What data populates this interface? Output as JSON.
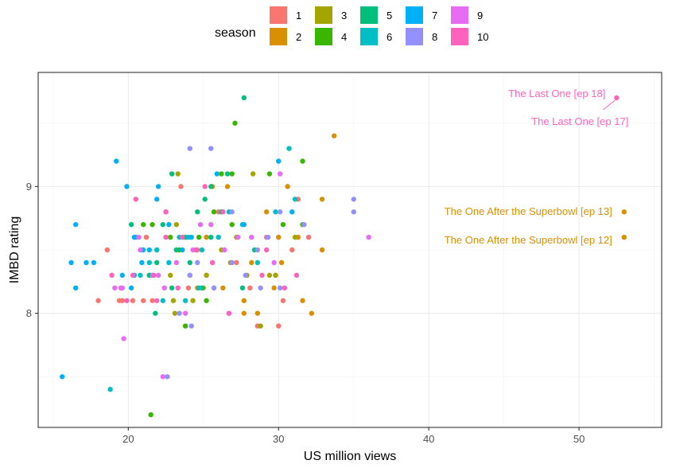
{
  "chart_data": {
    "type": "scatter",
    "title": "",
    "xlabel": "US million views",
    "ylabel": "IMBD rating",
    "xlim": [
      14,
      55.5
    ],
    "ylim": [
      7.1,
      9.9
    ],
    "xticks": [
      20,
      30,
      40,
      50
    ],
    "yticks": [
      8,
      9
    ],
    "grid": true,
    "legend": {
      "title": "season",
      "placement": "top",
      "entries": [
        {
          "label": "1",
          "color": "#F8766D"
        },
        {
          "label": "2",
          "color": "#D89000"
        },
        {
          "label": "3",
          "color": "#A3A500"
        },
        {
          "label": "4",
          "color": "#39B600"
        },
        {
          "label": "5",
          "color": "#00BF7D"
        },
        {
          "label": "6",
          "color": "#00BFC4"
        },
        {
          "label": "7",
          "color": "#00B0F6"
        },
        {
          "label": "8",
          "color": "#9590FF"
        },
        {
          "label": "9",
          "color": "#E76BF3"
        },
        {
          "label": "10",
          "color": "#FF62BC"
        }
      ]
    },
    "series": [
      {
        "name": "1",
        "color": "#F8766D",
        "points": [
          [
            18.6,
            8.5
          ],
          [
            18.0,
            8.1
          ],
          [
            19.4,
            8.1
          ],
          [
            19.6,
            8.1
          ],
          [
            20.3,
            8.1
          ],
          [
            21.0,
            8.1
          ],
          [
            21.6,
            8.1
          ],
          [
            22.5,
            8.8
          ],
          [
            23.5,
            9.0
          ],
          [
            24.0,
            8.2
          ],
          [
            24.6,
            8.5
          ],
          [
            25.2,
            8.3
          ],
          [
            26.0,
            8.8
          ],
          [
            26.7,
            8.0
          ],
          [
            27.2,
            8.4
          ],
          [
            28.1,
            8.2
          ],
          [
            28.6,
            7.9
          ],
          [
            29.2,
            8.6
          ],
          [
            29.8,
            8.3
          ],
          [
            30.0,
            7.9
          ],
          [
            30.3,
            8.1
          ],
          [
            30.9,
            8.5
          ],
          [
            31.3,
            8.9
          ],
          [
            32.0,
            8.6
          ],
          [
            21.2,
            8.6
          ]
        ]
      },
      {
        "name": "2",
        "color": "#D89000",
        "points": [
          [
            33.7,
            9.4
          ],
          [
            31.3,
            8.6
          ],
          [
            32.9,
            8.5
          ],
          [
            32.9,
            8.9
          ],
          [
            32.2,
            8.0
          ],
          [
            31.6,
            8.1
          ],
          [
            30.2,
            8.4
          ],
          [
            29.7,
            8.2
          ],
          [
            28.6,
            8.0
          ],
          [
            28.2,
            8.4
          ],
          [
            27.7,
            8.1
          ],
          [
            26.3,
            8.2
          ],
          [
            25.6,
            9.0
          ],
          [
            25.2,
            8.6
          ],
          [
            26.6,
            9.0
          ],
          [
            27.7,
            8.0
          ],
          [
            29.2,
            8.8
          ],
          [
            30.0,
            8.6
          ],
          [
            30.6,
            9.0
          ],
          [
            24.6,
            8.2
          ],
          [
            53.0,
            8.8
          ],
          [
            53.0,
            8.6
          ]
        ]
      },
      {
        "name": "3",
        "color": "#A3A500",
        "points": [
          [
            23.3,
            9.1
          ],
          [
            23.2,
            8.7
          ],
          [
            24.5,
            8.5
          ],
          [
            25.0,
            8.2
          ],
          [
            25.7,
            8.2
          ],
          [
            26.2,
            8.5
          ],
          [
            27.2,
            8.6
          ],
          [
            28.3,
            9.1
          ],
          [
            29.4,
            8.3
          ],
          [
            23.0,
            8.1
          ],
          [
            24.3,
            8.1
          ],
          [
            25.2,
            8.3
          ],
          [
            26.8,
            8.4
          ],
          [
            27.9,
            8.3
          ],
          [
            28.8,
            7.9
          ],
          [
            30.9,
            8.8
          ],
          [
            31.1,
            8.6
          ],
          [
            22.8,
            8.3
          ],
          [
            23.1,
            8.0
          ],
          [
            29.8,
            8.3
          ]
        ]
      },
      {
        "name": "4",
        "color": "#39B600",
        "points": [
          [
            27.1,
            9.5
          ],
          [
            26.9,
            9.1
          ],
          [
            26.2,
            9.1
          ],
          [
            25.7,
            8.8
          ],
          [
            24.7,
            8.6
          ],
          [
            24.1,
            8.3
          ],
          [
            23.8,
            7.9
          ],
          [
            21.9,
            8.5
          ],
          [
            21.6,
            8.7
          ],
          [
            21.4,
            8.3
          ],
          [
            22.8,
            8.6
          ],
          [
            23.4,
            8.5
          ],
          [
            21.0,
            8.7
          ],
          [
            21.5,
            7.2
          ],
          [
            25.2,
            8.1
          ],
          [
            26.9,
            8.7
          ],
          [
            29.4,
            9.1
          ],
          [
            30.3,
            8.7
          ],
          [
            31.6,
            9.2
          ],
          [
            31.6,
            8.7
          ]
        ]
      },
      {
        "name": "5",
        "color": "#00BF7D",
        "points": [
          [
            27.7,
            9.7
          ],
          [
            26.6,
            9.1
          ],
          [
            25.5,
            9.0
          ],
          [
            25.1,
            8.9
          ],
          [
            24.6,
            8.8
          ],
          [
            23.8,
            8.6
          ],
          [
            22.9,
            9.1
          ],
          [
            22.3,
            8.7
          ],
          [
            21.9,
            8.4
          ],
          [
            21.4,
            8.3
          ],
          [
            22.9,
            8.2
          ],
          [
            23.2,
            8.5
          ],
          [
            24.1,
            8.4
          ],
          [
            24.9,
            8.2
          ],
          [
            26.2,
            8.8
          ],
          [
            28.4,
            8.5
          ],
          [
            21.8,
            8.0
          ],
          [
            25.5,
            8.6
          ],
          [
            27.6,
            8.2
          ],
          [
            20.2,
            8.7
          ]
        ]
      },
      {
        "name": "6",
        "color": "#00BFC4",
        "points": [
          [
            30.7,
            9.3
          ],
          [
            31.1,
            8.9
          ],
          [
            28.6,
            8.4
          ],
          [
            27.6,
            8.7
          ],
          [
            26.0,
            8.6
          ],
          [
            24.9,
            8.5
          ],
          [
            24.0,
            8.6
          ],
          [
            23.4,
            8.6
          ],
          [
            22.7,
            8.4
          ],
          [
            21.9,
            8.5
          ],
          [
            21.0,
            8.5
          ],
          [
            20.5,
            8.6
          ],
          [
            20.8,
            8.3
          ],
          [
            22.3,
            8.1
          ],
          [
            23.8,
            8.1
          ],
          [
            24.7,
            8.2
          ],
          [
            26.7,
            8.8
          ],
          [
            29.8,
            8.8
          ],
          [
            21.4,
            8.4
          ],
          [
            18.8,
            7.4
          ]
        ]
      },
      {
        "name": "7",
        "color": "#00B0F6",
        "points": [
          [
            19.2,
            9.2
          ],
          [
            19.9,
            9.0
          ],
          [
            21.9,
            8.9
          ],
          [
            21.4,
            8.5
          ],
          [
            20.9,
            8.5
          ],
          [
            20.9,
            8.4
          ],
          [
            20.4,
            8.3
          ],
          [
            20.4,
            8.6
          ],
          [
            16.5,
            8.7
          ],
          [
            16.5,
            8.2
          ],
          [
            16.2,
            8.4
          ],
          [
            17.2,
            8.4
          ],
          [
            17.7,
            8.4
          ],
          [
            19.6,
            8.3
          ],
          [
            20.2,
            8.2
          ],
          [
            22.0,
            9.0
          ],
          [
            22.7,
            8.7
          ],
          [
            23.6,
            8.5
          ],
          [
            24.2,
            8.6
          ],
          [
            25.9,
            9.1
          ],
          [
            27.7,
            8.7
          ],
          [
            30.0,
            9.2
          ],
          [
            30.9,
            8.8
          ],
          [
            15.6,
            7.5
          ]
        ]
      },
      {
        "name": "8",
        "color": "#9590FF",
        "points": [
          [
            35.0,
            8.9
          ],
          [
            35.0,
            8.8
          ],
          [
            31.7,
            8.7
          ],
          [
            30.1,
            8.8
          ],
          [
            29.3,
            8.6
          ],
          [
            28.6,
            8.5
          ],
          [
            27.8,
            8.3
          ],
          [
            26.9,
            8.4
          ],
          [
            25.7,
            8.2
          ],
          [
            24.6,
            8.4
          ],
          [
            24.1,
            8.3
          ],
          [
            22.6,
            7.5
          ],
          [
            24.1,
            9.3
          ],
          [
            25.5,
            9.3
          ],
          [
            26.9,
            8.8
          ],
          [
            28.8,
            8.2
          ],
          [
            30.1,
            8.2
          ],
          [
            23.4,
            8.0
          ],
          [
            24.2,
            7.9
          ],
          [
            21.6,
            8.3
          ]
        ]
      },
      {
        "name": "9",
        "color": "#E76BF3",
        "points": [
          [
            36.0,
            8.6
          ],
          [
            30.1,
            9.1
          ],
          [
            28.2,
            8.6
          ],
          [
            26.4,
            8.5
          ],
          [
            25.5,
            8.7
          ],
          [
            24.8,
            8.7
          ],
          [
            24.3,
            8.5
          ],
          [
            23.2,
            8.4
          ],
          [
            22.0,
            8.3
          ],
          [
            20.8,
            8.5
          ],
          [
            20.7,
            8.6
          ],
          [
            19.5,
            8.2
          ],
          [
            19.1,
            8.2
          ],
          [
            19.6,
            8.2
          ],
          [
            19.7,
            7.8
          ],
          [
            22.3,
            7.5
          ],
          [
            23.8,
            8.0
          ],
          [
            27.3,
            8.6
          ],
          [
            22.4,
            8.2
          ],
          [
            29.7,
            8.4
          ]
        ]
      },
      {
        "name": "10",
        "color": "#FF62BC",
        "points": [
          [
            52.5,
            9.7
          ],
          [
            20.5,
            8.9
          ],
          [
            18.9,
            8.3
          ],
          [
            20.3,
            8.3
          ],
          [
            21.7,
            8.3
          ],
          [
            22.5,
            8.8
          ],
          [
            23.6,
            8.6
          ],
          [
            25.1,
            9.0
          ],
          [
            26.7,
            8.0
          ],
          [
            28.9,
            8.3
          ],
          [
            31.2,
            8.3
          ],
          [
            21.9,
            8.1
          ],
          [
            23.3,
            8.2
          ],
          [
            25.6,
            8.4
          ],
          [
            26.3,
            8.8
          ],
          [
            30.4,
            8.2
          ],
          [
            24.5,
            8.5
          ],
          [
            22.5,
            8.6
          ],
          [
            19.9,
            8.1
          ],
          [
            29.2,
            8.5
          ]
        ]
      }
    ],
    "annotations": [
      {
        "text": "The Last One [ep 18]",
        "series": "10",
        "x": 52.5,
        "y": 9.7
      },
      {
        "text": "The Last One [ep 17]",
        "series": "10",
        "x": 52.5,
        "y": 9.7
      },
      {
        "text": "The One After the Superbowl [ep 13]",
        "series": "2",
        "x": 53.0,
        "y": 8.8
      },
      {
        "text": "The One After the Superbowl [ep 12]",
        "series": "2",
        "x": 53.0,
        "y": 8.6
      }
    ]
  }
}
